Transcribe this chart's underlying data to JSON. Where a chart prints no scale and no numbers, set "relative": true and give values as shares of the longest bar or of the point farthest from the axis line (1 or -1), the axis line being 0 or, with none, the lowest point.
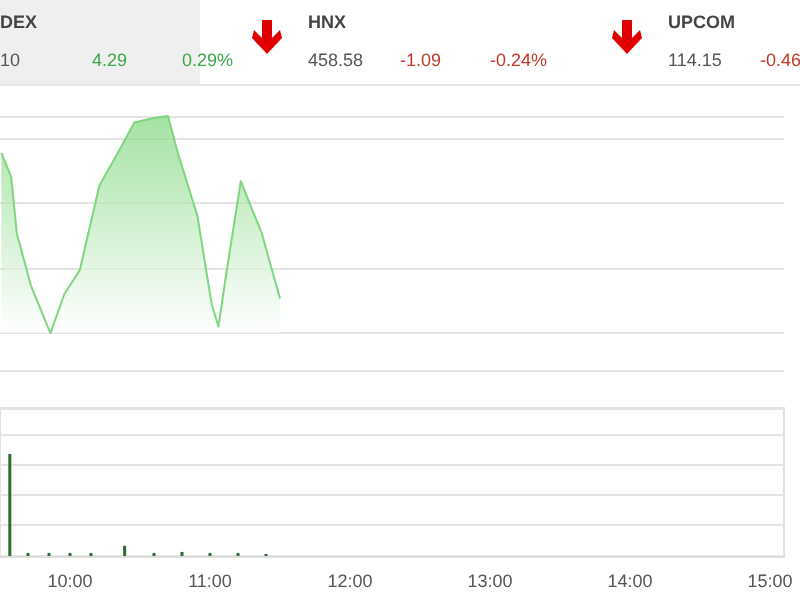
{
  "chart_data": [
    {
      "type": "other",
      "annotations": [
        "DEX",
        "10",
        "4.29",
        "0.29%",
        "HNX",
        "458.58",
        "-1.09",
        "-0.24%",
        "UPCOM",
        "114.15",
        "-0.46"
      ]
    },
    {
      "type": "area",
      "relative": true,
      "tick_labels": false,
      "grid": "y",
      "xlim": [
        9.5,
        15.1
      ],
      "x": [
        9.51,
        9.58,
        9.62,
        9.72,
        9.86,
        9.96,
        10.07,
        10.21,
        10.35,
        10.46,
        10.59,
        10.7,
        10.77,
        10.91,
        11.01,
        11.06,
        11.12,
        11.22,
        11.3,
        11.37,
        11.43,
        11.5
      ],
      "series": [
        {
          "color": "#7ed67e",
          "values": [
            0.83,
            0.72,
            0.46,
            0.22,
            0,
            0.18,
            0.29,
            0.68,
            0.84,
            0.97,
            0.99,
            1,
            0.83,
            0.54,
            0.14,
            0.03,
            0.29,
            0.7,
            0.57,
            0.46,
            0.32,
            0.16
          ]
        }
      ]
    },
    {
      "type": "bar",
      "relative": true,
      "tick_labels": "x",
      "grid": "y",
      "xlim": [
        9.5,
        15.1
      ],
      "xticks": [
        {
          "value": 10,
          "label": "10:00"
        },
        {
          "value": 11,
          "label": "11:00"
        },
        {
          "value": 12,
          "label": "12:00"
        },
        {
          "value": 13,
          "label": "13:00"
        },
        {
          "value": 14,
          "label": "14:00"
        },
        {
          "value": 15,
          "label": "15:00"
        }
      ],
      "x": [
        9.57,
        9.7,
        9.85,
        10.0,
        10.15,
        10.39,
        10.6,
        10.8,
        11.0,
        11.2,
        11.4
      ],
      "series": [
        {
          "color": "#2e6b34",
          "values": [
            1,
            0.03,
            0.03,
            0.03,
            0.03,
            0.1,
            0.03,
            0.04,
            0.03,
            0.03,
            0.02
          ]
        }
      ]
    }
  ]
}
